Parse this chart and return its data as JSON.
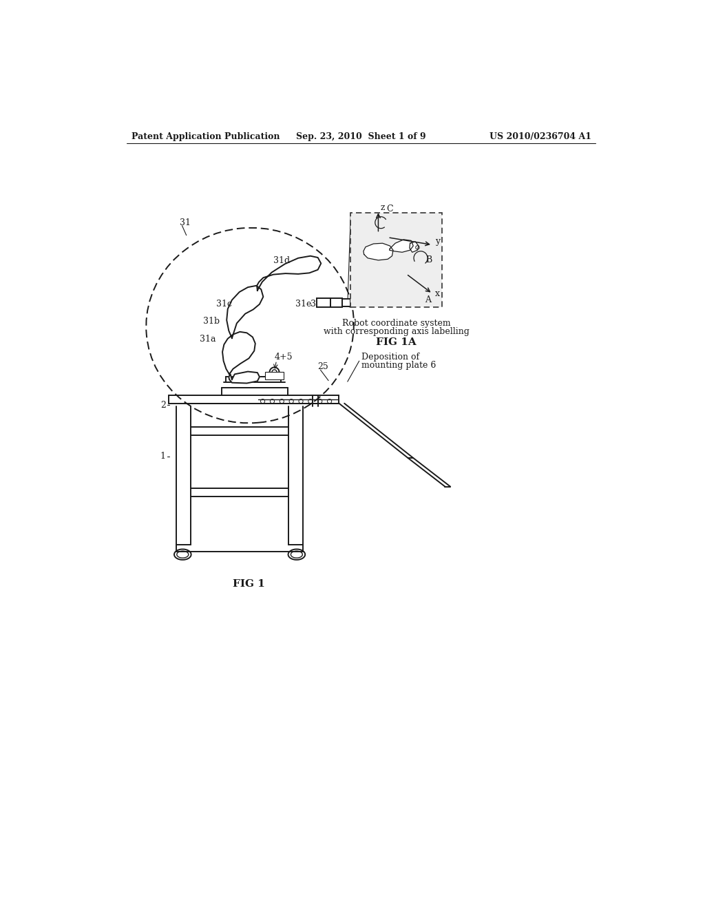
{
  "bg_color": "#ffffff",
  "text_color": "#1a1a1a",
  "line_color": "#1a1a1a",
  "header_left": "Patent Application Publication",
  "header_mid": "Sep. 23, 2010  Sheet 1 of 9",
  "header_right": "US 2010/0236704 A1",
  "fig_label": "FIG 1",
  "fig1a_label": "FIG 1A",
  "fig1a_caption1": "Robot coordinate system",
  "fig1a_caption2": "with corresponding axis labelling",
  "deposition_label": "Deposition of",
  "deposition_label2": "mounting plate 6"
}
